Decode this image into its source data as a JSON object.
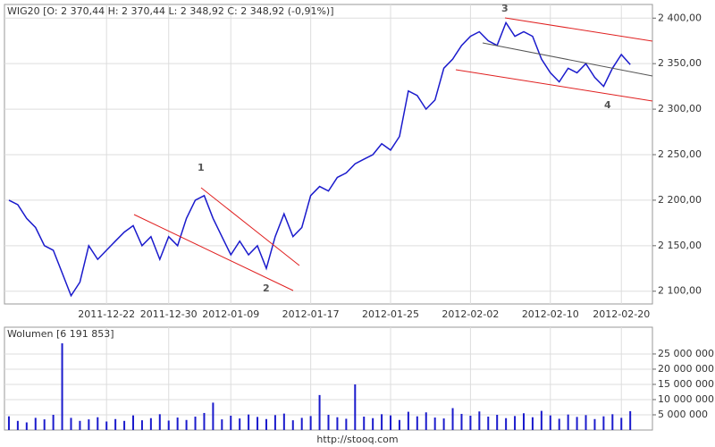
{
  "chart_data": [
    {
      "type": "line",
      "title": "WIG20 [O: 2 370,44  H: 2 370,44  L: 2 348,92  C: 2 348,92  (-0,91%)]",
      "categories": [
        null,
        null,
        null,
        null,
        null,
        null,
        null,
        null,
        null,
        null,
        null,
        "2011-12-22",
        null,
        null,
        null,
        null,
        null,
        null,
        "2011-12-30",
        null,
        null,
        null,
        null,
        null,
        null,
        "2012-01-09",
        null,
        null,
        null,
        null,
        null,
        null,
        null,
        null,
        "2012-01-17",
        null,
        null,
        null,
        null,
        null,
        null,
        null,
        null,
        "2012-01-25",
        null,
        null,
        null,
        null,
        null,
        null,
        null,
        null,
        "2012-02-02",
        null,
        null,
        null,
        null,
        null,
        null,
        null,
        null,
        "2012-02-10",
        null,
        null,
        null,
        null,
        null,
        null,
        null,
        "2012-02-20",
        null,
        null,
        null
      ],
      "series": [
        {
          "name": "WIG20",
          "color": "#1a1acc",
          "values": [
            2200,
            2195,
            2180,
            2170,
            2150,
            2145,
            2120,
            2095,
            2110,
            2150,
            2135,
            2145,
            2155,
            2165,
            2172,
            2150,
            2160,
            2135,
            2160,
            2150,
            2180,
            2200,
            2205,
            2180,
            2160,
            2140,
            2155,
            2140,
            2150,
            2125,
            2160,
            2185,
            2160,
            2170,
            2205,
            2215,
            2210,
            2225,
            2230,
            2240,
            2245,
            2250,
            2262,
            2255,
            2270,
            2320,
            2315,
            2300,
            2310,
            2345,
            2355,
            2370,
            2380,
            2385,
            2375,
            2370,
            2395,
            2380,
            2385,
            2380,
            2355,
            2340,
            2330,
            2345,
            2340,
            2350,
            2335,
            2325,
            2345,
            2360,
            2349,
            null,
            null
          ]
        }
      ],
      "annotations": [
        "1",
        "2",
        "3",
        "4"
      ],
      "ylim": [
        2086,
        2415
      ],
      "yticks": [
        {
          "value": 2100,
          "label": "2 100,00"
        },
        {
          "value": 2150,
          "label": "2 150,00"
        },
        {
          "value": 2200,
          "label": "2 200,00"
        },
        {
          "value": 2250,
          "label": "2 250,00"
        },
        {
          "value": 2300,
          "label": "2 300,00"
        },
        {
          "value": 2350,
          "label": "2 350,00"
        },
        {
          "value": 2400,
          "label": "2 400,00"
        }
      ],
      "grid": true
    },
    {
      "type": "bar",
      "title": "Wolumen [6 191 853]",
      "color": "#1a1acc",
      "values": [
        4500000,
        3000000,
        2500000,
        4000000,
        3500000,
        5000000,
        28500000,
        4000000,
        3000000,
        3500000,
        4200000,
        2800000,
        3600000,
        3000000,
        4800000,
        3200000,
        3900000,
        5200000,
        3100000,
        4100000,
        3300000,
        4400000,
        5600000,
        9000000,
        3500000,
        4700000,
        3800000,
        5100000,
        4300000,
        3600000,
        4900000,
        5400000,
        3200000,
        4000000,
        4600000,
        11500000,
        5000000,
        4200000,
        3700000,
        15000000,
        4400000,
        3900000,
        5200000,
        4800000,
        3300000,
        6000000,
        4500000,
        5800000,
        4100000,
        3800000,
        7200000,
        5300000,
        4700000,
        6100000,
        4400000,
        5000000,
        3900000,
        4600000,
        5500000,
        4200000,
        6300000,
        4800000,
        3700000,
        5100000,
        4300000,
        4900000,
        3600000,
        4500000,
        5200000,
        4000000,
        6200000,
        null,
        null
      ],
      "ylim": [
        0,
        33800000
      ],
      "yticks": [
        {
          "value": 5000000,
          "label": "5 000 000"
        },
        {
          "value": 10000000,
          "label": "10 000 000"
        },
        {
          "value": 15000000,
          "label": "15 000 000"
        },
        {
          "value": 20000000,
          "label": "20 000 000"
        },
        {
          "value": 25000000,
          "label": "25 000 000"
        }
      ],
      "grid": true
    }
  ],
  "footer": "http://stooq.com"
}
